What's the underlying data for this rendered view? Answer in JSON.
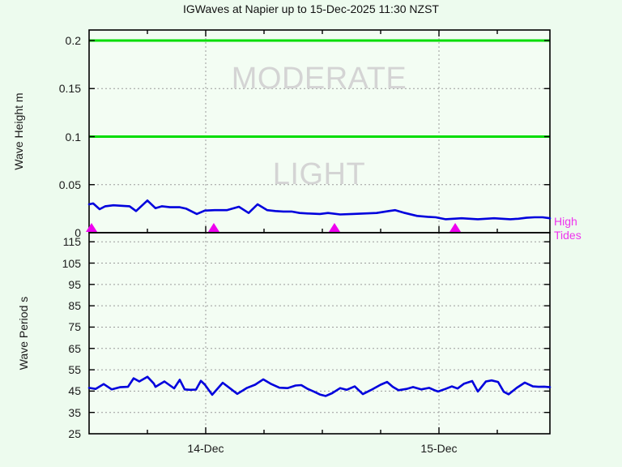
{
  "title": "IGWaves at Napier up to 15-Dec-2025 11:30 NZST",
  "colors": {
    "background": "#edfbee",
    "plot_background": "#f3fdf3",
    "axis": "#000000",
    "grid": "#9b9b9b",
    "threshold_green": "#00dd00",
    "series_blue": "#0000dd",
    "tide_magenta": "#ee00ee",
    "tide_label_magenta": "#ee33ee",
    "watermark_gray": "#d4d4d4"
  },
  "x_axis": {
    "start": "13-Dec 12:00 NZST",
    "end": "15-Dec 11:30 NZST",
    "tick_labels": [
      {
        "label": "14-Dec",
        "hour": 12
      },
      {
        "label": "15-Dec",
        "hour": 36
      }
    ],
    "minor_tick_hours": [
      6,
      12,
      18,
      24,
      30,
      36,
      42
    ],
    "major_tick_hours": [
      12,
      36
    ]
  },
  "top_panel": {
    "ylabel": "Wave Height m",
    "yticks": [
      {
        "label": "0.2",
        "value": 0.2
      },
      {
        "label": "0.15",
        "value": 0.15
      },
      {
        "label": "0.1",
        "value": 0.1
      },
      {
        "label": "0.05",
        "value": 0.05
      },
      {
        "label": "0",
        "value": 0
      }
    ],
    "dotted_gridlines": [
      0.05,
      0.15
    ],
    "threshold_lines": [
      0.1,
      0.2
    ],
    "band_labels": [
      {
        "text": "MODERATE",
        "band_m": [
          0.1,
          0.2
        ]
      },
      {
        "text": "LIGHT",
        "band_m": [
          0,
          0.1
        ]
      }
    ],
    "high_tides_legend": [
      "High",
      "Tides"
    ]
  },
  "bottom_panel": {
    "ylabel": "Wave Period s",
    "yticks": [
      {
        "label": "115",
        "value": 115
      },
      {
        "label": "105",
        "value": 105
      },
      {
        "label": "95",
        "value": 95
      },
      {
        "label": "85",
        "value": 85
      },
      {
        "label": "75",
        "value": 75
      },
      {
        "label": "65",
        "value": 65
      },
      {
        "label": "55",
        "value": 55
      },
      {
        "label": "45",
        "value": 45
      },
      {
        "label": "35",
        "value": 35
      },
      {
        "label": "25",
        "value": 25
      }
    ],
    "dotted_gridlines": [
      35,
      45,
      55,
      65,
      75,
      85,
      95,
      105,
      115
    ]
  },
  "chart_data": [
    {
      "type": "line",
      "panel": "top",
      "title": "IGWaves at Napier up to 15-Dec-2025 11:30 NZST",
      "ylabel": "Wave Height m",
      "ylim": [
        0,
        0.21
      ],
      "yticks": [
        0,
        0.05,
        0.1,
        0.15,
        0.2
      ],
      "grid": "dotted at 0.05 and 0.15, solid green threshold lines at 0.1 and 0.2",
      "x_unit": "hours since 13-Dec-2025 12:00 NZST",
      "x_range_hours": [
        0,
        47.42
      ],
      "bands": [
        {
          "label": "LIGHT",
          "range_m": [
            0,
            0.1
          ]
        },
        {
          "label": "MODERATE",
          "range_m": [
            0.1,
            0.2
          ]
        }
      ],
      "series": [
        {
          "name": "IG wave height (m)",
          "color": "#0000dd",
          "x_hours": [
            0,
            0.42,
            1.08,
            1.67,
            2.5,
            3.33,
            4.17,
            4.83,
            6.0,
            6.83,
            7.5,
            8.33,
            9.33,
            10.0,
            11.08,
            11.92,
            12.92,
            14.17,
            15.42,
            16.42,
            17.33,
            18.33,
            19.17,
            20.0,
            20.83,
            21.67,
            22.5,
            23.75,
            24.58,
            25.83,
            27.08,
            28.33,
            29.58,
            30.83,
            31.5,
            32.5,
            33.75,
            34.83,
            35.67,
            35.92,
            36.67,
            37.5,
            38.33,
            39.17,
            40.0,
            40.83,
            41.67,
            42.5,
            43.33,
            44.17,
            45.0,
            45.83,
            46.67,
            47.42
          ],
          "values": [
            0.0295,
            0.0305,
            0.0245,
            0.0275,
            0.0285,
            0.028,
            0.0275,
            0.0225,
            0.0335,
            0.0255,
            0.0275,
            0.0265,
            0.0265,
            0.025,
            0.0195,
            0.023,
            0.0235,
            0.0235,
            0.027,
            0.0205,
            0.0295,
            0.0235,
            0.0225,
            0.022,
            0.022,
            0.0205,
            0.02,
            0.0195,
            0.0205,
            0.019,
            0.0195,
            0.02,
            0.0205,
            0.0225,
            0.0235,
            0.0205,
            0.0175,
            0.0165,
            0.016,
            0.0155,
            0.014,
            0.0145,
            0.015,
            0.0145,
            0.014,
            0.0145,
            0.015,
            0.0145,
            0.014,
            0.0145,
            0.0155,
            0.016,
            0.016,
            0.015
          ]
        }
      ],
      "markers": {
        "name": "High Tides",
        "symbol": "triangle-up",
        "color": "#ee00ee",
        "x_hours": [
          0.25,
          12.83,
          25.25,
          37.67
        ],
        "y_value": 0
      }
    },
    {
      "type": "line",
      "panel": "bottom",
      "ylabel": "Wave Period s",
      "ylim": [
        25,
        120
      ],
      "yticks": [
        25,
        35,
        45,
        55,
        65,
        75,
        85,
        95,
        105,
        115
      ],
      "grid": "dotted at every 10 s",
      "x_unit": "hours since 13-Dec-2025 12:00 NZST",
      "x_range_hours": [
        0,
        47.42
      ],
      "series": [
        {
          "name": "IG wave period (s)",
          "color": "#0000dd",
          "x_hours": [
            0,
            0.67,
            1.5,
            2.33,
            3.17,
            4.0,
            4.58,
            5.17,
            6.0,
            6.67,
            6.83,
            7.75,
            8.75,
            9.33,
            9.83,
            10.42,
            11.0,
            11.5,
            11.92,
            12.67,
            13.75,
            14.58,
            15.25,
            16.25,
            17.08,
            17.92,
            18.75,
            19.58,
            20.42,
            21.25,
            21.83,
            22.5,
            23.17,
            23.75,
            24.33,
            25.0,
            25.83,
            26.5,
            27.33,
            28.17,
            29.0,
            30.0,
            30.67,
            31.25,
            31.83,
            32.67,
            33.33,
            34.17,
            35.0,
            35.67,
            35.92,
            36.67,
            37.33,
            37.92,
            38.58,
            39.42,
            40.0,
            40.83,
            41.42,
            42.08,
            42.67,
            43.17,
            44.0,
            44.83,
            45.67,
            46.25,
            46.83,
            47.42
          ],
          "values": [
            46.5,
            46,
            48.3,
            45.8,
            46.8,
            47,
            51,
            49.5,
            51.7,
            48.5,
            47,
            49.5,
            46.3,
            50.3,
            45.8,
            45.6,
            45.7,
            49.8,
            48,
            43.3,
            48.9,
            46,
            43.7,
            46.5,
            48,
            50.5,
            48.3,
            46.6,
            46.4,
            47.6,
            47.8,
            46,
            44.7,
            43.4,
            42.7,
            44,
            46.4,
            45.6,
            47.2,
            43.6,
            45.5,
            48,
            49.3,
            47,
            45.4,
            46,
            46.9,
            45.8,
            46.5,
            45.2,
            44.8,
            46,
            47.2,
            46.2,
            48.5,
            49.7,
            44.8,
            49.5,
            50,
            49.3,
            44.7,
            43.5,
            46.5,
            49,
            47.2,
            47,
            47.1,
            46.8
          ]
        }
      ]
    }
  ]
}
